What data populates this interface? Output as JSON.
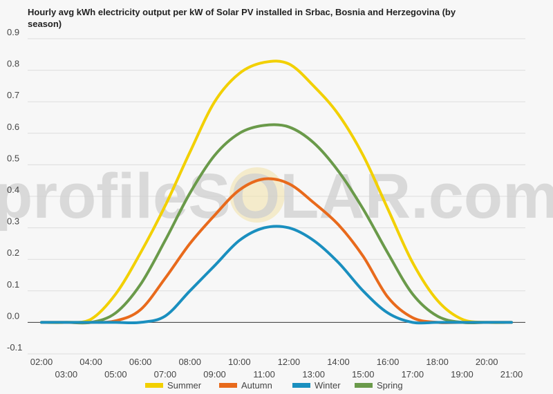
{
  "chart_data": {
    "type": "line",
    "title": "Hourly avg kWh electricity output per kW of Solar PV installed in Srbac, Bosnia and Herzegovina (by season)",
    "watermark": "profileSOLAR.com",
    "xlabel": "",
    "ylabel": "",
    "x": [
      "02:00",
      "03:00",
      "04:00",
      "05:00",
      "06:00",
      "07:00",
      "08:00",
      "09:00",
      "10:00",
      "11:00",
      "12:00",
      "13:00",
      "14:00",
      "15:00",
      "16:00",
      "17:00",
      "18:00",
      "19:00",
      "20:00",
      "21:00"
    ],
    "x_ticks_upper": [
      "02:00",
      "04:00",
      "06:00",
      "08:00",
      "10:00",
      "12:00",
      "14:00",
      "16:00",
      "18:00",
      "20:00"
    ],
    "x_ticks_lower": [
      "03:00",
      "05:00",
      "07:00",
      "09:00",
      "11:00",
      "13:00",
      "15:00",
      "17:00",
      "19:00",
      "21:00"
    ],
    "y_ticks": [
      "0.9",
      "0.8",
      "0.7",
      "0.6",
      "0.5",
      "0.4",
      "0.3",
      "0.2",
      "0.1",
      "0.0",
      "-0.1"
    ],
    "ylim": [
      -0.1,
      0.9
    ],
    "grid": true,
    "legend_position": "bottom",
    "series": [
      {
        "name": "Summer",
        "color": "#f2d000",
        "values": [
          0,
          0,
          0.01,
          0.09,
          0.22,
          0.37,
          0.54,
          0.7,
          0.79,
          0.825,
          0.82,
          0.75,
          0.66,
          0.53,
          0.36,
          0.19,
          0.07,
          0.01,
          0,
          0
        ]
      },
      {
        "name": "Autumn",
        "color": "#e86a1c",
        "values": [
          0,
          0,
          0,
          0.005,
          0.04,
          0.14,
          0.25,
          0.34,
          0.42,
          0.455,
          0.44,
          0.38,
          0.31,
          0.21,
          0.08,
          0.015,
          0,
          0,
          0,
          0
        ]
      },
      {
        "name": "Winter",
        "color": "#1a8fbf",
        "values": [
          0,
          0,
          0,
          0,
          0,
          0.02,
          0.1,
          0.18,
          0.26,
          0.3,
          0.3,
          0.26,
          0.19,
          0.1,
          0.03,
          0,
          0,
          0,
          0,
          0
        ]
      },
      {
        "name": "Spring",
        "color": "#6a9a4a",
        "values": [
          0,
          0,
          0,
          0.03,
          0.12,
          0.26,
          0.41,
          0.53,
          0.6,
          0.625,
          0.62,
          0.57,
          0.48,
          0.36,
          0.22,
          0.09,
          0.02,
          0,
          0,
          0
        ]
      }
    ]
  }
}
